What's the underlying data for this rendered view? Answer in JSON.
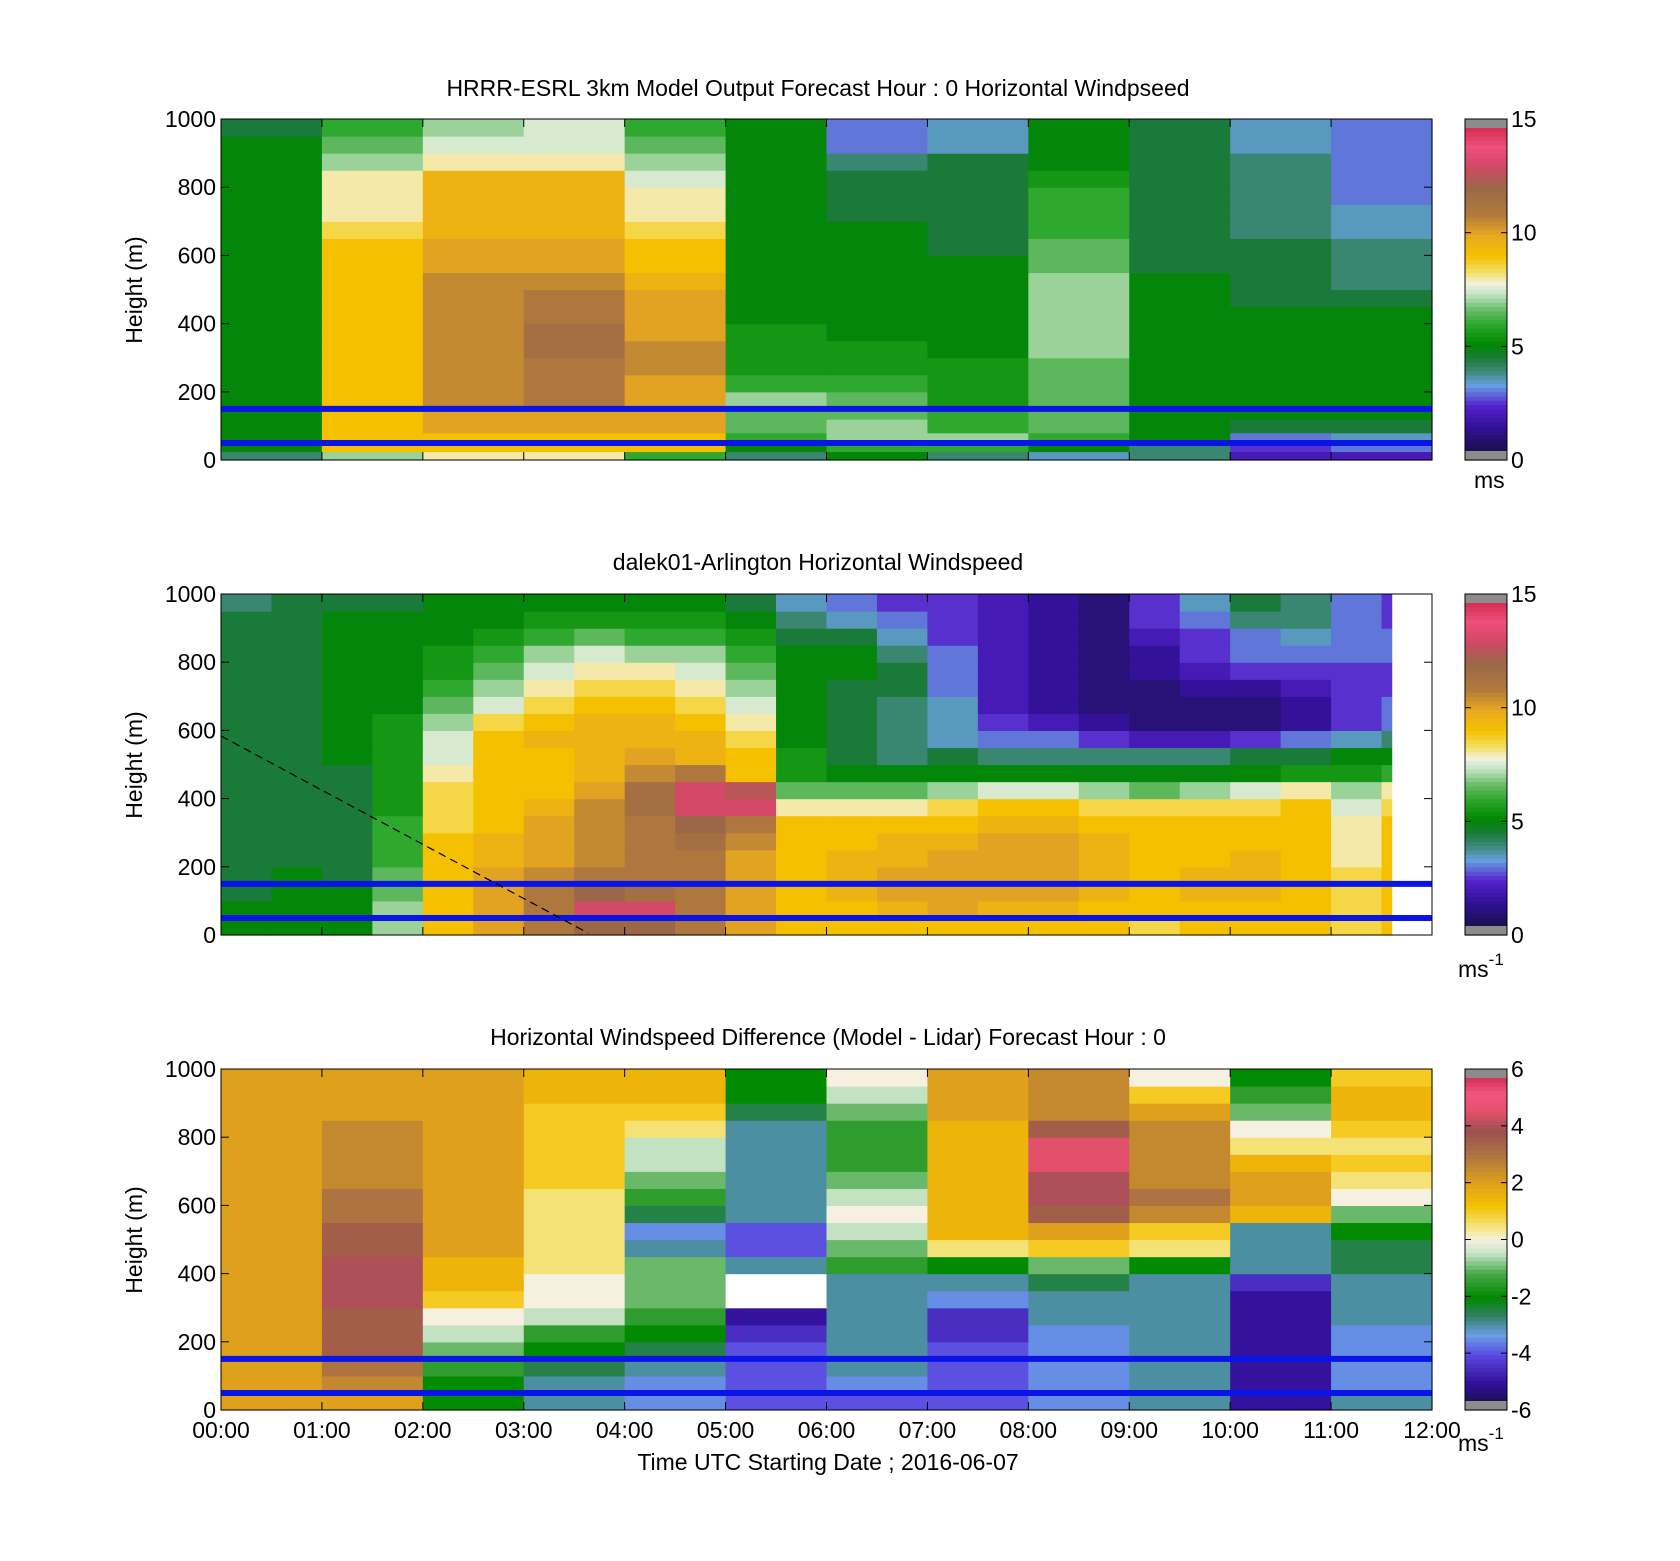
{
  "figure": {
    "xlabel": "Time UTC  Starting Date ; 2016-06-07",
    "x_ticks": [
      "00:00",
      "01:00",
      "02:00",
      "03:00",
      "04:00",
      "05:00",
      "06:00",
      "07:00",
      "08:00",
      "09:00",
      "10:00",
      "11:00",
      "12:00"
    ]
  },
  "chart_data": [
    {
      "type": "heatmap",
      "title": "HRRR-ESRL 3km Model Output   Forecast Hour : 0 Horizontal Windpseed",
      "ylabel": "Height (m)",
      "y_ticks": [
        "0",
        "200",
        "400",
        "600",
        "800",
        "1000"
      ],
      "ylim": [
        0,
        1000
      ],
      "xlim_hours": [
        0,
        12
      ],
      "colorbar": {
        "ticks": [
          "0",
          "5",
          "10",
          "15"
        ],
        "range": [
          0,
          15
        ],
        "unit": "ms",
        "unit_exp": "",
        "colormap": "windspeed"
      },
      "reference_lines_m": [
        150,
        50
      ],
      "heights_m": [
        25,
        50,
        80,
        120,
        160,
        200,
        250,
        300,
        350,
        400,
        450,
        500,
        550,
        600,
        650,
        700,
        750,
        800,
        850,
        900,
        950,
        1000
      ],
      "columns_hour_start": [
        0,
        1,
        2,
        3,
        4,
        5,
        6,
        7,
        8,
        9,
        10,
        11
      ],
      "values": [
        [
          4,
          7,
          8,
          8,
          6,
          4,
          5,
          4,
          3.5,
          4,
          2,
          2
        ],
        [
          5,
          9,
          9,
          9,
          9,
          5,
          6,
          6,
          5,
          4,
          2.5,
          3
        ],
        [
          5,
          9,
          9,
          9,
          9,
          6,
          7,
          7,
          6,
          5,
          3,
          3.5
        ],
        [
          5,
          9,
          10,
          10,
          10,
          6.5,
          7,
          6,
          6.5,
          5,
          4.5,
          4.5
        ],
        [
          5,
          9,
          10,
          10,
          10,
          6.5,
          6.5,
          6,
          6.5,
          5,
          5,
          5
        ],
        [
          5,
          9,
          10.5,
          11,
          10,
          7,
          6.5,
          5.5,
          6.5,
          5,
          5,
          5
        ],
        [
          5,
          9,
          10.5,
          11,
          10,
          6,
          6,
          5.5,
          6.5,
          5,
          5,
          5
        ],
        [
          5,
          9,
          10.5,
          11,
          10.5,
          5.5,
          5.5,
          5.5,
          6.5,
          5,
          5,
          5
        ],
        [
          5,
          9,
          10.5,
          11.5,
          10.5,
          5.5,
          5.5,
          5,
          7,
          5,
          5,
          5
        ],
        [
          5,
          9,
          10.5,
          11.5,
          10,
          5.5,
          5,
          5,
          7,
          5,
          5,
          5
        ],
        [
          5,
          9,
          10.5,
          11,
          10,
          5,
          5,
          5,
          7,
          5,
          5,
          5
        ],
        [
          5,
          9,
          10.5,
          11,
          10,
          5,
          5,
          5,
          7,
          5,
          4.5,
          4.5
        ],
        [
          5,
          9,
          10.5,
          10.5,
          9.5,
          5,
          5,
          5,
          7,
          5,
          4.5,
          4
        ],
        [
          5,
          9,
          10,
          10,
          9,
          5,
          5,
          5,
          6.5,
          4.5,
          4.5,
          4
        ],
        [
          5,
          9,
          10,
          10,
          9,
          5,
          5,
          4.5,
          6.5,
          4.5,
          4.5,
          4
        ],
        [
          5,
          8.5,
          9.5,
          9.5,
          8.5,
          5,
          5,
          4.5,
          6,
          4.5,
          4,
          3.5
        ],
        [
          5,
          8,
          9.5,
          9.5,
          8,
          5,
          4.5,
          4.5,
          6,
          4.5,
          4,
          3.5
        ],
        [
          5,
          8,
          9.5,
          9.5,
          8,
          5,
          4.5,
          4.5,
          6,
          4.5,
          4,
          3
        ],
        [
          5,
          8,
          9.5,
          9.5,
          7.5,
          5,
          4.5,
          4.5,
          5.5,
          4.5,
          4,
          3
        ],
        [
          5,
          7,
          8,
          8,
          7,
          5,
          4,
          4.5,
          5,
          4.5,
          4,
          3
        ],
        [
          5,
          6.5,
          7.5,
          7.5,
          6.5,
          5,
          3,
          3.5,
          5,
          4.5,
          3.5,
          3
        ],
        [
          4.5,
          6,
          7,
          7.5,
          6,
          5,
          3,
          3.5,
          5,
          4.5,
          3.5,
          3
        ]
      ]
    },
    {
      "type": "heatmap",
      "title": "dalek01-Arlington  Horizontal Windspeed",
      "ylabel": "Height (m)",
      "y_ticks": [
        "0",
        "200",
        "400",
        "600",
        "800",
        "1000"
      ],
      "ylim": [
        0,
        1000
      ],
      "xlim_hours": [
        0,
        12
      ],
      "colorbar": {
        "ticks": [
          "0",
          "5",
          "10",
          "15"
        ],
        "range": [
          0,
          15
        ],
        "unit": "ms",
        "unit_exp": "-1",
        "colormap": "windspeed"
      },
      "reference_lines_m": [
        150,
        50
      ],
      "data_end_hour": 11.6,
      "heights_m": [
        50,
        100,
        150,
        200,
        250,
        300,
        350,
        400,
        450,
        500,
        550,
        600,
        650,
        700,
        750,
        800,
        850,
        900,
        950,
        1000
      ],
      "columns_hour_start": [
        0,
        0.5,
        1,
        1.5,
        2,
        2.5,
        3,
        3.5,
        4,
        4.5,
        5,
        5.5,
        6,
        6.5,
        7,
        7.5,
        8,
        8.5,
        9,
        9.5,
        10,
        10.5,
        11,
        11.5
      ],
      "values": [
        [
          5,
          5,
          5,
          7,
          9,
          10,
          11,
          12,
          12,
          11,
          10,
          9,
          9,
          9,
          9,
          9,
          9,
          9,
          8.5,
          9,
          9,
          9,
          8.5,
          9
        ],
        [
          5,
          5,
          5,
          7,
          9,
          10,
          11,
          13,
          13,
          11,
          10,
          9,
          9,
          9.5,
          10,
          9.5,
          9.5,
          9,
          9,
          9,
          9,
          9,
          8.5,
          9
        ],
        [
          4.5,
          5,
          5,
          6.5,
          9,
          10,
          11,
          12,
          11.5,
          11,
          10,
          9,
          9.5,
          10,
          10,
          10,
          10,
          9.5,
          9,
          9.5,
          9.5,
          9,
          8.5,
          9
        ],
        [
          4.5,
          5,
          4.5,
          6.5,
          9,
          10,
          10.5,
          11,
          11,
          11,
          10,
          9,
          9.5,
          10,
          10,
          10,
          10,
          9.5,
          9,
          9.5,
          9.5,
          9,
          8.5,
          9
        ],
        [
          4.5,
          4.5,
          4.5,
          6,
          9,
          9.5,
          10,
          10.5,
          11,
          11,
          10,
          9,
          9.5,
          9.5,
          10,
          10,
          10,
          9.5,
          9,
          9,
          9.5,
          9,
          8,
          9
        ],
        [
          4.5,
          4.5,
          4.5,
          6,
          9,
          9.5,
          10,
          10.5,
          11,
          11.5,
          10.5,
          9,
          9,
          9.5,
          9.5,
          10,
          10,
          9.5,
          9,
          9,
          9,
          9,
          8,
          9
        ],
        [
          4.5,
          4.5,
          4.5,
          6,
          8.5,
          9,
          10,
          10.5,
          11,
          12,
          11,
          9,
          9,
          9,
          9,
          9.5,
          9.5,
          9,
          9,
          9,
          9,
          9,
          8,
          9
        ],
        [
          4.5,
          4.5,
          4.5,
          5.5,
          8.5,
          9,
          9.5,
          10.5,
          11.5,
          13,
          13,
          8,
          8,
          8,
          8.5,
          9,
          9,
          8.5,
          8.5,
          8.5,
          8.5,
          9,
          7.5,
          8.5
        ],
        [
          4.5,
          4.5,
          4.5,
          5.5,
          8.5,
          9,
          9,
          10,
          11.5,
          13,
          12.5,
          6.5,
          6.5,
          6.5,
          7,
          7.5,
          7.5,
          7,
          6.5,
          7,
          7.5,
          8,
          7,
          8
        ],
        [
          4.5,
          4.5,
          4.5,
          5.5,
          8,
          9,
          9,
          9.5,
          10.5,
          11,
          9,
          5.5,
          5,
          5,
          5,
          5,
          5,
          5,
          5,
          5,
          5,
          5.5,
          5.5,
          6
        ],
        [
          4.5,
          4.5,
          5,
          5.5,
          7.5,
          9,
          9,
          9.5,
          10,
          9.5,
          9,
          5.5,
          4.5,
          4,
          4.5,
          4,
          4,
          4,
          4,
          4,
          4.5,
          4.5,
          5,
          5
        ],
        [
          4.5,
          4.5,
          5,
          5.5,
          7.5,
          9,
          9.5,
          9.5,
          9.5,
          9.5,
          8.5,
          5,
          4.5,
          4,
          3.5,
          3,
          3,
          2.5,
          2,
          2,
          2.5,
          3,
          3.5,
          4
        ],
        [
          4.5,
          4.5,
          5,
          5.5,
          7,
          8.5,
          9,
          9.5,
          9.5,
          9,
          8,
          5,
          4.5,
          4,
          3.5,
          2.5,
          2,
          1.5,
          1,
          1,
          1,
          1.5,
          2.5,
          3
        ],
        [
          4.5,
          4.5,
          5,
          5,
          6.5,
          7.5,
          8.5,
          9,
          9,
          8.5,
          7.5,
          5,
          4.5,
          4,
          3.5,
          2,
          1.5,
          1,
          1,
          1,
          1,
          1.5,
          2.5,
          3
        ],
        [
          4.5,
          4.5,
          5,
          5,
          6,
          7,
          8,
          8.5,
          8.5,
          8,
          7,
          5,
          4.5,
          4.5,
          3,
          2,
          1.5,
          1,
          1,
          1.5,
          1.5,
          2,
          2.5,
          2.5
        ],
        [
          4.5,
          4.5,
          5,
          5,
          5.5,
          6.5,
          7.5,
          8,
          8,
          7.5,
          6.5,
          5,
          5,
          4.5,
          3,
          2,
          1.5,
          1,
          1.5,
          2,
          2.5,
          2.5,
          2.5,
          2.5
        ],
        [
          4.5,
          4.5,
          5,
          5,
          5.5,
          6,
          7,
          7.5,
          7,
          7,
          6,
          5,
          5,
          4,
          3,
          2,
          1.5,
          1,
          1.5,
          2.5,
          3,
          3,
          3,
          3
        ],
        [
          4.5,
          4.5,
          5,
          5,
          5,
          5.5,
          6,
          6.5,
          6,
          6,
          5.5,
          4.5,
          4.5,
          3.5,
          2.5,
          2,
          1.5,
          1,
          2,
          2.5,
          3,
          3.5,
          3,
          3
        ],
        [
          4.5,
          4.5,
          5,
          5,
          5,
          5,
          5.5,
          5.5,
          5.5,
          5.5,
          5,
          4,
          3.5,
          3,
          2.5,
          2,
          1.5,
          1,
          2.5,
          3,
          4,
          4,
          3,
          2.5
        ],
        [
          4,
          4.5,
          4.5,
          4.5,
          5,
          5,
          5,
          5,
          5,
          5,
          4.5,
          3.5,
          3,
          2.5,
          2.5,
          2,
          1.5,
          1,
          2.5,
          3.5,
          4.5,
          4,
          3,
          2.5
        ]
      ]
    },
    {
      "type": "heatmap",
      "title": "Horizontal Windspeed Difference (Model - Lidar) Forecast Hour : 0",
      "ylabel": "Height (m)",
      "y_ticks": [
        "0",
        "200",
        "400",
        "600",
        "800",
        "1000"
      ],
      "ylim": [
        0,
        1000
      ],
      "xlim_hours": [
        0,
        12
      ],
      "colorbar": {
        "ticks": [
          "-6",
          "-4",
          "-2",
          "0",
          "2",
          "4",
          "6"
        ],
        "range": [
          -6,
          6
        ],
        "unit": "ms",
        "unit_exp": "-1",
        "colormap": "difference"
      },
      "reference_lines_m": [
        150,
        50
      ],
      "heights_m": [
        50,
        100,
        150,
        200,
        250,
        300,
        350,
        400,
        450,
        500,
        550,
        600,
        650,
        700,
        750,
        800,
        850,
        900,
        950,
        1000
      ],
      "columns_hour_start": [
        0,
        1,
        2,
        3,
        4,
        5,
        6,
        7,
        8,
        9,
        10,
        11
      ],
      "values": [
        [
          2,
          2,
          -2,
          -3,
          -3.5,
          -4,
          -4,
          -4,
          -3.5,
          -3,
          -5,
          -3
        ],
        [
          2,
          2.5,
          -2,
          -3,
          -3.5,
          -4,
          -3.5,
          -4,
          -3.5,
          -3,
          -5,
          -3.5
        ],
        [
          2,
          3,
          -1.5,
          -2.5,
          -3,
          -4,
          -3,
          -4,
          -3.5,
          -3,
          -5,
          -3.5
        ],
        [
          2,
          3.5,
          -1,
          -2,
          -2.5,
          -4,
          -3,
          -4,
          -3.5,
          -3,
          -5,
          -3.5
        ],
        [
          2,
          3.5,
          -0.5,
          -1.5,
          -2,
          -4.5,
          -3,
          -4.5,
          -3.5,
          -3,
          -5,
          -3.5
        ],
        [
          2,
          3.5,
          0,
          -0.5,
          -1.5,
          -5,
          -3,
          -4.5,
          -3,
          -3,
          -5,
          -3
        ],
        [
          2,
          4,
          1,
          0,
          -1,
          null,
          -3,
          -3.5,
          -3,
          -3,
          -5,
          -3
        ],
        [
          2,
          4,
          1.5,
          0,
          -1,
          null,
          -3,
          -3,
          -2.5,
          -3,
          -4.5,
          -3
        ],
        [
          2,
          4,
          1.5,
          0.5,
          -1,
          -3,
          -1.5,
          -2,
          -1,
          -2,
          -3,
          -2.5
        ],
        [
          2,
          3.5,
          2,
          0.5,
          -3,
          -4,
          -1,
          0.5,
          1,
          0.5,
          -3,
          -2.5
        ],
        [
          2,
          3.5,
          2,
          0.5,
          -3.5,
          -4,
          -0.5,
          1.5,
          2,
          1,
          -3,
          -2
        ],
        [
          2,
          3,
          2,
          0.5,
          -2.5,
          -3,
          0,
          1.5,
          3.5,
          2.5,
          1.5,
          -1
        ],
        [
          2,
          3,
          2,
          0.5,
          -1.5,
          -3,
          -0.5,
          1.5,
          4,
          3,
          2,
          0
        ],
        [
          2,
          2.5,
          2,
          1,
          -1,
          -3,
          -1,
          1.5,
          4,
          2.5,
          2,
          0.5
        ],
        [
          2,
          2.5,
          2,
          1,
          -0.5,
          -3,
          -1.5,
          1.5,
          4.5,
          2.5,
          1.5,
          1
        ],
        [
          2,
          2.5,
          2,
          1,
          -0.5,
          -3,
          -1.5,
          1.5,
          4.5,
          2.5,
          0.5,
          0.5
        ],
        [
          2,
          2.5,
          2,
          1,
          0.5,
          -3,
          -1.5,
          1.5,
          3.5,
          2.5,
          0,
          1
        ],
        [
          2,
          2,
          2,
          1,
          1,
          -2.5,
          -1,
          2,
          2.5,
          2,
          -1,
          1.5
        ],
        [
          2,
          2,
          2,
          1.5,
          1.5,
          -2,
          -0.5,
          2,
          2.5,
          1,
          -1.5,
          1.5
        ],
        [
          2,
          2,
          2,
          1.5,
          1.5,
          -2,
          0,
          2,
          2.5,
          0,
          -2,
          1
        ]
      ]
    }
  ]
}
